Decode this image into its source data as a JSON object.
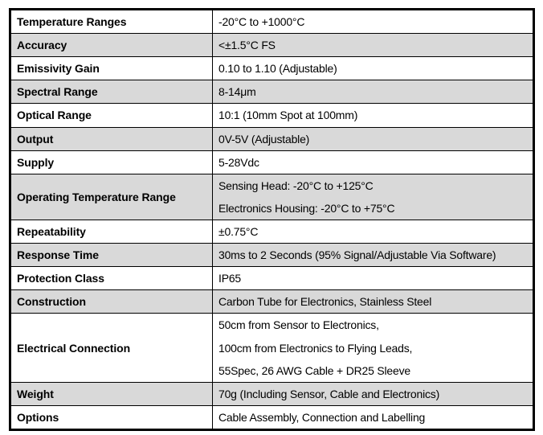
{
  "document": {
    "type": "specification-table",
    "colors": {
      "shaded_row_bg": "#d9d9d9",
      "unshaded_row_bg": "#ffffff",
      "border": "#000000",
      "text": "#000000"
    },
    "table": {
      "rows": [
        {
          "label": "Temperature Ranges",
          "lines": [
            "-20°C to +1000°C"
          ],
          "shaded": false
        },
        {
          "label": "Accuracy",
          "lines": [
            "<±1.5°C FS"
          ],
          "shaded": true
        },
        {
          "label": "Emissivity Gain",
          "lines": [
            "0.10 to 1.10 (Adjustable)"
          ],
          "shaded": false
        },
        {
          "label": "Spectral Range",
          "lines": [
            "8-14μm"
          ],
          "shaded": true
        },
        {
          "label": "Optical Range",
          "lines": [
            "10:1 (10mm Spot at 100mm)"
          ],
          "shaded": false
        },
        {
          "label": "Output",
          "lines": [
            "0V-5V (Adjustable)"
          ],
          "shaded": true
        },
        {
          "label": "Supply",
          "lines": [
            "5-28Vdc"
          ],
          "shaded": false
        },
        {
          "label": "Operating Temperature Range",
          "lines": [
            "Sensing Head: -20°C to +125°C",
            "Electronics Housing: -20°C to +75°C"
          ],
          "shaded": true
        },
        {
          "label": "Repeatability",
          "lines": [
            "±0.75°C"
          ],
          "shaded": false
        },
        {
          "label": "Response Time",
          "lines": [
            "30ms to 2 Seconds (95% Signal/Adjustable Via Software)"
          ],
          "shaded": true
        },
        {
          "label": "Protection Class",
          "lines": [
            "IP65"
          ],
          "shaded": false
        },
        {
          "label": "Construction",
          "lines": [
            "Carbon Tube for Electronics, Stainless Steel"
          ],
          "shaded": true
        },
        {
          "label": "Electrical Connection",
          "lines": [
            "50cm from Sensor to Electronics,",
            "100cm from Electronics to Flying Leads,",
            "55Spec, 26 AWG Cable + DR25 Sleeve"
          ],
          "shaded": false
        },
        {
          "label": "Weight",
          "lines": [
            "70g (Including Sensor, Cable and Electronics)"
          ],
          "shaded": true
        },
        {
          "label": "Options",
          "lines": [
            "Cable Assembly, Connection and Labelling"
          ],
          "shaded": false
        }
      ]
    }
  }
}
